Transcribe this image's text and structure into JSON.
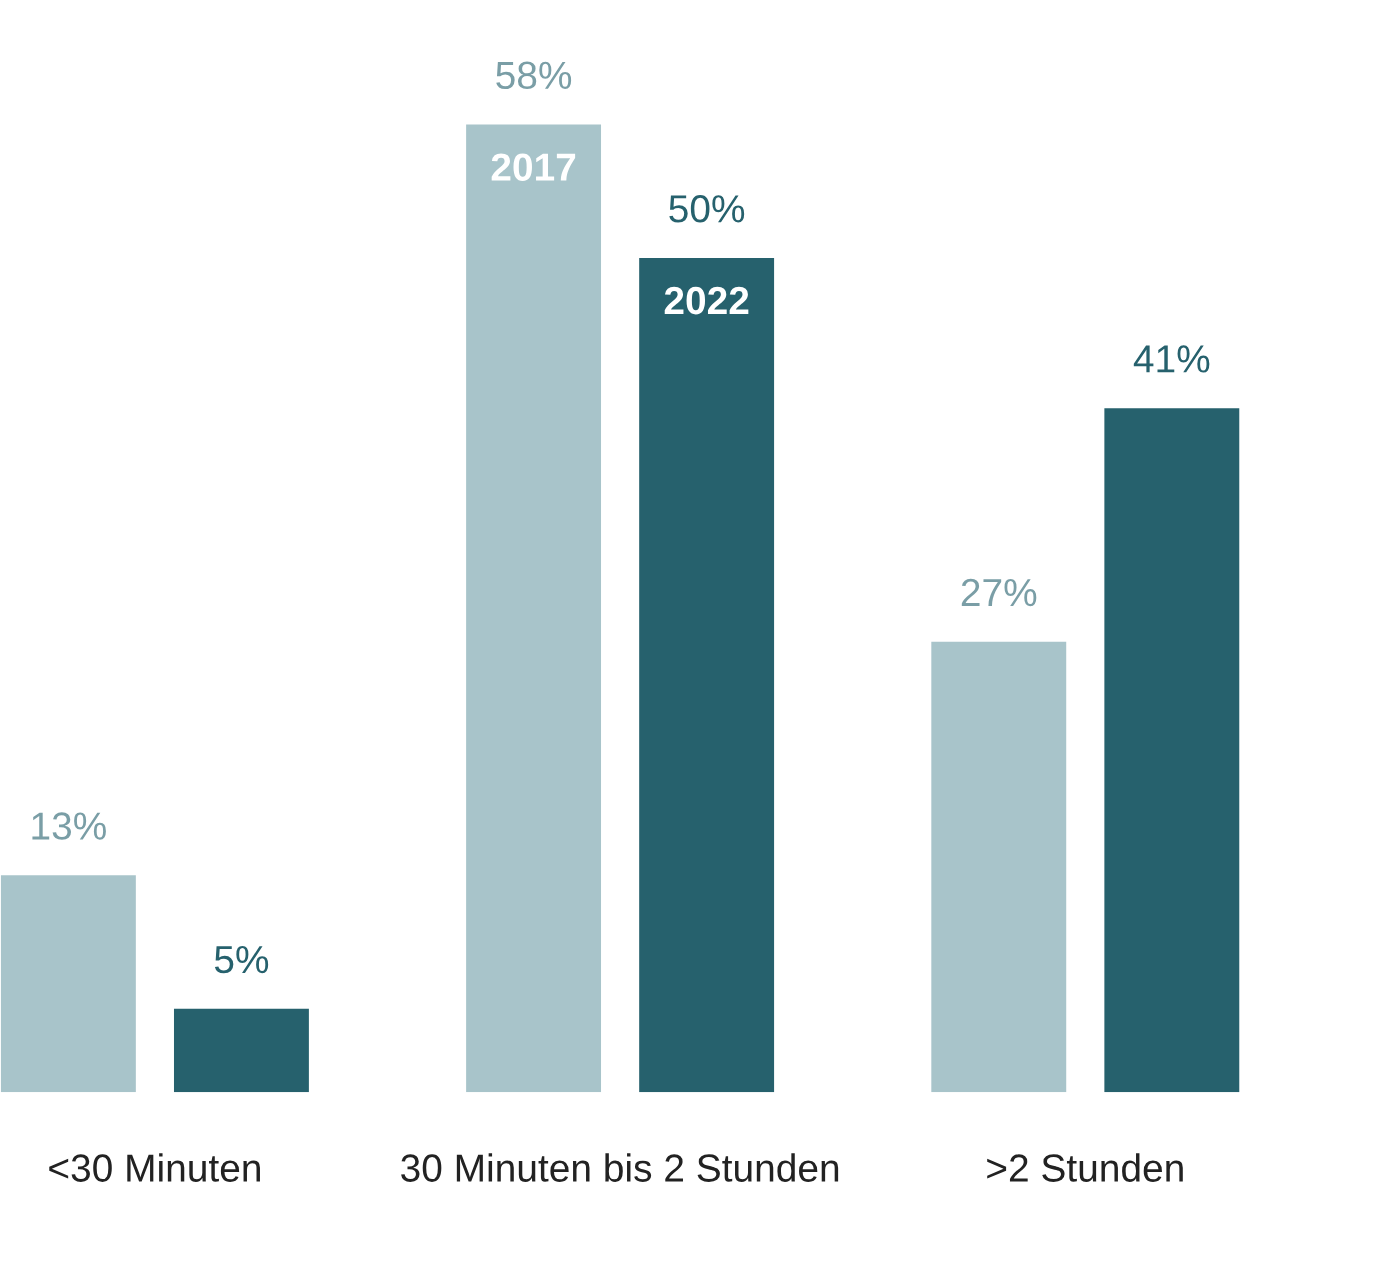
{
  "chart_data": {
    "type": "bar",
    "categories": [
      "<30 Minuten",
      "30 Minuten bis 2 Stunden",
      ">2 Stunden"
    ],
    "series": [
      {
        "name": "2017",
        "color": "#a8c4ca",
        "values": [
          13,
          58,
          27
        ],
        "value_labels": [
          "13%",
          "58%",
          "27%"
        ]
      },
      {
        "name": "2022",
        "color": "#26616d",
        "values": [
          5,
          50,
          41
        ],
        "value_labels": [
          "5%",
          "50%",
          "41%"
        ]
      }
    ],
    "grid": false,
    "legend": false
  }
}
